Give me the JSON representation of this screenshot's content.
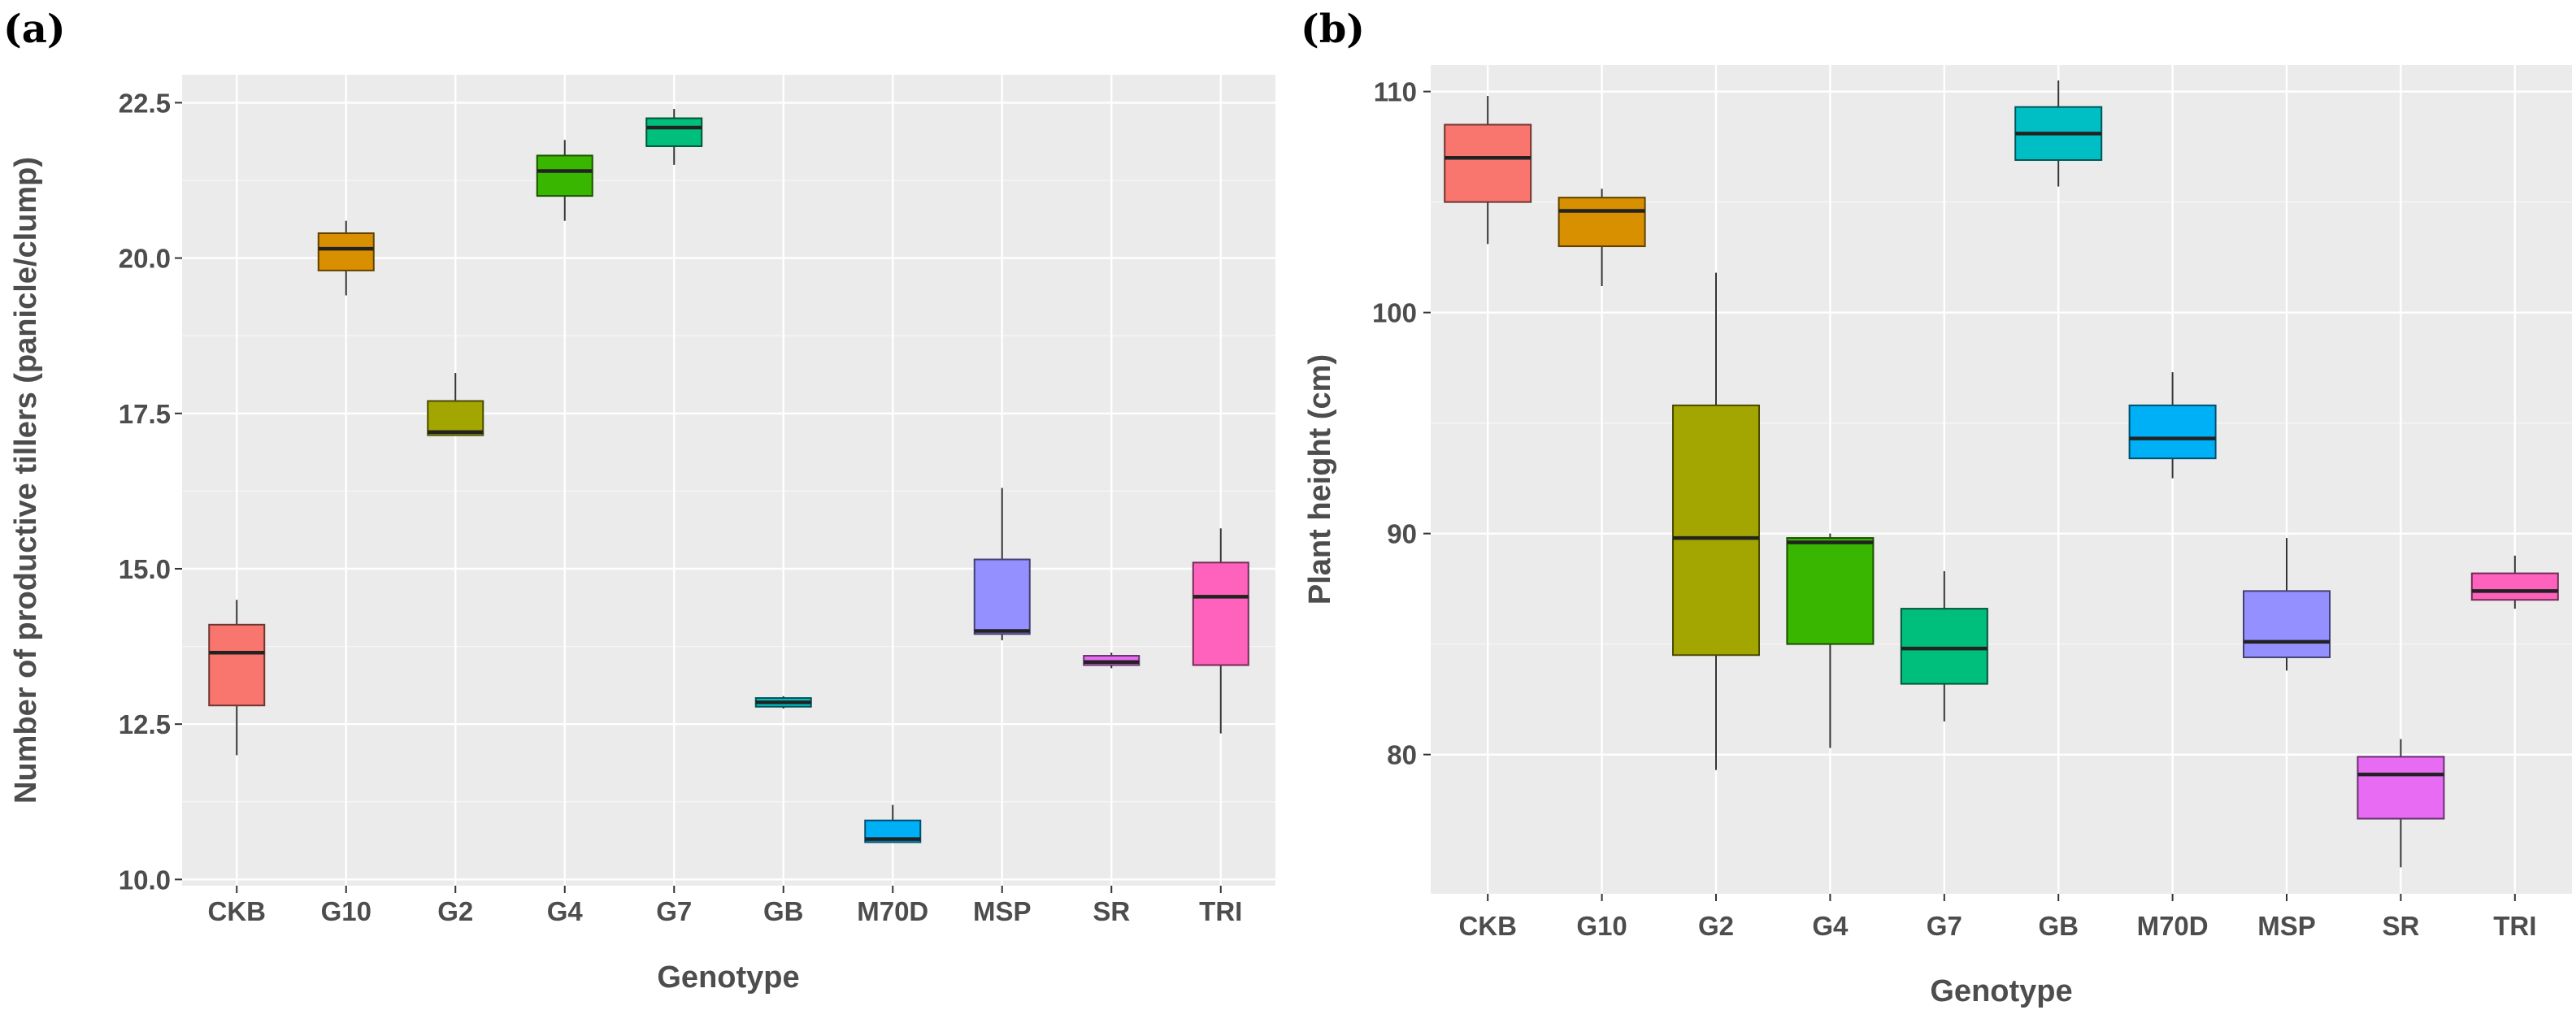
{
  "chart_data": [
    {
      "panel": "(a)",
      "type": "box",
      "xlabel": "Genotype",
      "ylabel": "Number of productive tillers (panicle/clump)",
      "ylim": [
        9.9,
        22.95
      ],
      "yticks": [
        10.0,
        12.5,
        15.0,
        17.5,
        20.0,
        22.5
      ],
      "ytick_labels": [
        "10.0",
        "12.5",
        "15.0",
        "17.5",
        "20.0",
        "22.5"
      ],
      "categories": [
        "CKB",
        "G10",
        "G2",
        "G4",
        "G7",
        "GB",
        "M70D",
        "MSP",
        "SR",
        "TRI"
      ],
      "colors": [
        "#F8766D",
        "#D89000",
        "#A3A500",
        "#39B600",
        "#00BF7D",
        "#00BFC4",
        "#00B0F6",
        "#9590FF",
        "#E76BF3",
        "#FF62BC"
      ],
      "boxes": [
        {
          "min": 12.0,
          "q1": 12.8,
          "median": 13.65,
          "q3": 14.1,
          "max": 14.5
        },
        {
          "min": 19.4,
          "q1": 19.8,
          "median": 20.15,
          "q3": 20.4,
          "max": 20.6
        },
        {
          "min": 17.15,
          "q1": 17.15,
          "median": 17.2,
          "q3": 17.7,
          "max": 18.15
        },
        {
          "min": 20.6,
          "q1": 21.0,
          "median": 21.4,
          "q3": 21.65,
          "max": 21.9
        },
        {
          "min": 21.5,
          "q1": 21.8,
          "median": 22.1,
          "q3": 22.25,
          "max": 22.4
        },
        {
          "min": 12.75,
          "q1": 12.78,
          "median": 12.85,
          "q3": 12.92,
          "max": 12.95
        },
        {
          "min": 10.6,
          "q1": 10.6,
          "median": 10.65,
          "q3": 10.95,
          "max": 11.2
        },
        {
          "min": 13.85,
          "q1": 13.95,
          "median": 14.0,
          "q3": 15.15,
          "max": 16.3
        },
        {
          "min": 13.4,
          "q1": 13.45,
          "median": 13.5,
          "q3": 13.6,
          "max": 13.65
        },
        {
          "min": 12.35,
          "q1": 13.45,
          "median": 14.55,
          "q3": 15.1,
          "max": 15.65
        }
      ]
    },
    {
      "panel": "(b)",
      "type": "box",
      "xlabel": "Genotype",
      "ylabel": "Plant height (cm)",
      "ylim": [
        73.7,
        111.2
      ],
      "yticks": [
        80,
        90,
        100,
        110
      ],
      "ytick_labels": [
        "80",
        "90",
        "100",
        "110"
      ],
      "categories": [
        "CKB",
        "G10",
        "G2",
        "G4",
        "G7",
        "GB",
        "M70D",
        "MSP",
        "SR",
        "TRI"
      ],
      "colors": [
        "#F8766D",
        "#D89000",
        "#A3A500",
        "#39B600",
        "#00BF7D",
        "#00BFC4",
        "#00B0F6",
        "#9590FF",
        "#E76BF3",
        "#FF62BC"
      ],
      "boxes": [
        {
          "min": 103.1,
          "q1": 105.0,
          "median": 107.0,
          "q3": 108.5,
          "max": 109.8
        },
        {
          "min": 101.2,
          "q1": 103.0,
          "median": 104.6,
          "q3": 105.2,
          "max": 105.6
        },
        {
          "min": 79.3,
          "q1": 84.5,
          "median": 89.8,
          "q3": 95.8,
          "max": 101.8
        },
        {
          "min": 80.3,
          "q1": 85.0,
          "median": 89.6,
          "q3": 89.8,
          "max": 90.0
        },
        {
          "min": 81.5,
          "q1": 83.2,
          "median": 84.8,
          "q3": 86.6,
          "max": 88.3
        },
        {
          "min": 105.7,
          "q1": 106.9,
          "median": 108.1,
          "q3": 109.3,
          "max": 110.5
        },
        {
          "min": 92.5,
          "q1": 93.4,
          "median": 94.3,
          "q3": 95.8,
          "max": 97.3
        },
        {
          "min": 83.8,
          "q1": 84.4,
          "median": 85.1,
          "q3": 87.4,
          "max": 89.8
        },
        {
          "min": 74.9,
          "q1": 77.1,
          "median": 79.1,
          "q3": 79.9,
          "max": 80.7
        },
        {
          "min": 86.6,
          "q1": 87.0,
          "median": 87.4,
          "q3": 88.2,
          "max": 89.0
        }
      ]
    }
  ]
}
